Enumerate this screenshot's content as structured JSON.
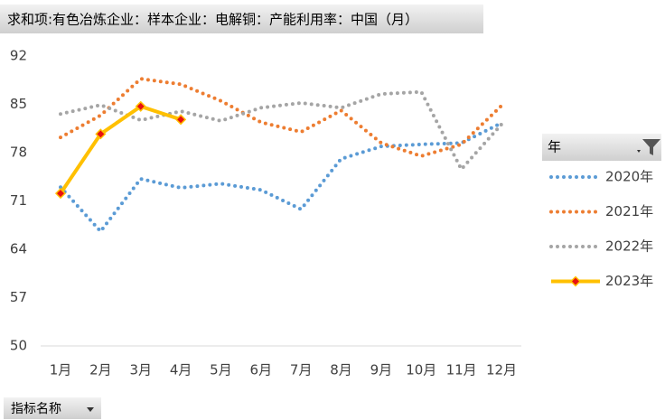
{
  "chart_data": {
    "type": "line",
    "title": "求和项:有色冶炼企业：样本企业：电解铜：产能利用率：中国（月）",
    "categories": [
      "1月",
      "2月",
      "3月",
      "4月",
      "5月",
      "6月",
      "7月",
      "8月",
      "9月",
      "10月",
      "11月",
      "12月"
    ],
    "series": [
      {
        "name": "2020年",
        "color": "#5b9bd5",
        "style": "dotted",
        "values": [
          73.0,
          66.6,
          74.2,
          72.9,
          73.5,
          72.6,
          69.8,
          77.1,
          78.9,
          79.2,
          79.4,
          82.3
        ]
      },
      {
        "name": "2021年",
        "color": "#ed7d31",
        "style": "dotted",
        "values": [
          80.2,
          83.4,
          88.7,
          87.9,
          85.5,
          82.4,
          81.0,
          84.1,
          79.4,
          77.5,
          79.2,
          84.8
        ]
      },
      {
        "name": "2022年",
        "color": "#a5a5a5",
        "style": "dotted",
        "values": [
          83.6,
          84.9,
          82.7,
          84.0,
          82.6,
          84.5,
          85.2,
          84.5,
          86.5,
          86.8,
          75.6,
          82.1
        ]
      },
      {
        "name": "2023年",
        "color": "#ffc000",
        "style": "solid",
        "marker": true,
        "marker_color": "#e81010",
        "values": [
          72.1,
          80.7,
          84.7,
          82.8,
          null,
          null,
          null,
          null,
          null,
          null,
          null,
          null
        ]
      }
    ],
    "ylim": [
      50,
      92
    ],
    "yticks": [
      50,
      57,
      64,
      71,
      78,
      85,
      92
    ],
    "grid": false,
    "legend_title": "年",
    "legend": "right",
    "field_button": "指标名称"
  }
}
